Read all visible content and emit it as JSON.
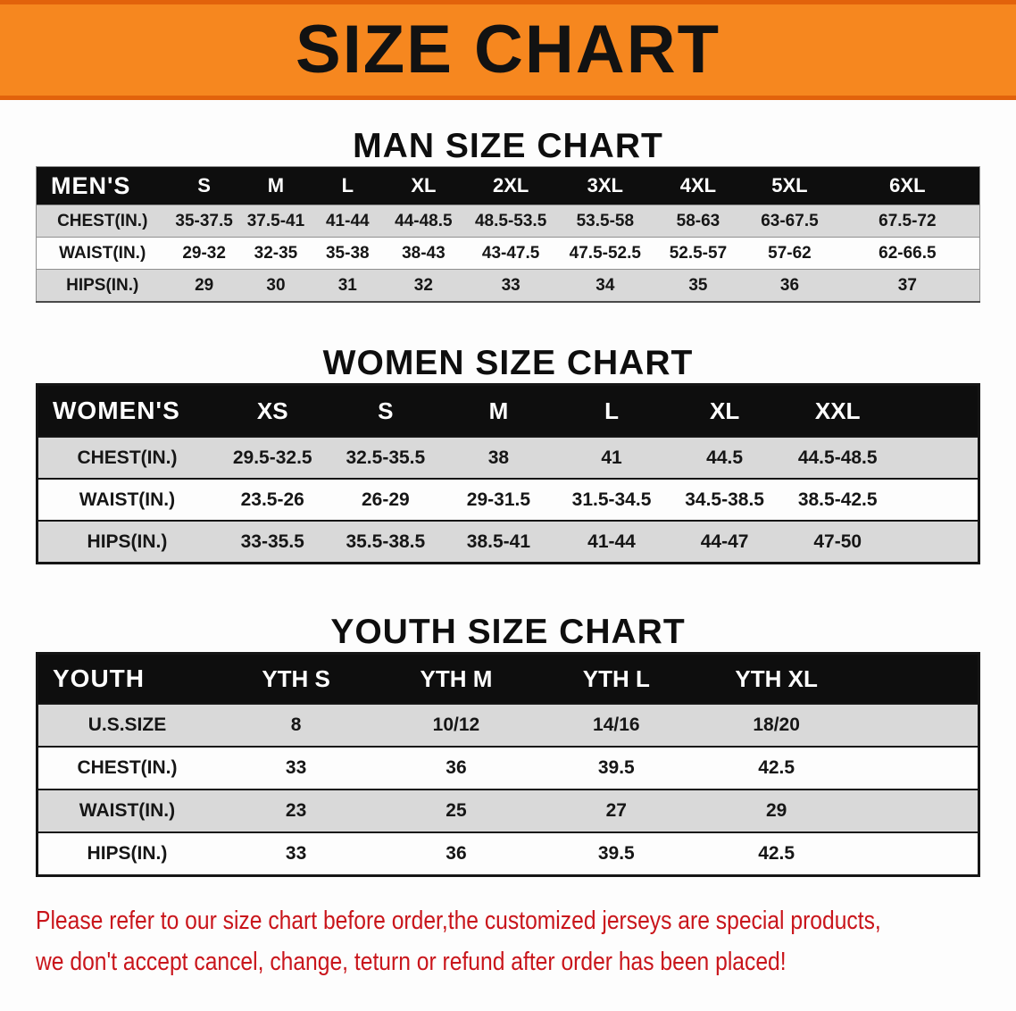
{
  "banner": {
    "title": "SIZE CHART"
  },
  "colors": {
    "banner_bg": "#f6871f",
    "table_header_bg": "#0e0e0e",
    "row_stripe": "#d9d9d9",
    "disclaimer_text": "#c9151b"
  },
  "chart_data": [
    {
      "type": "table",
      "title": "MAN SIZE CHART",
      "columns": [
        "MEN'S",
        "S",
        "M",
        "L",
        "XL",
        "2XL",
        "3XL",
        "4XL",
        "5XL",
        "6XL"
      ],
      "rows": [
        [
          "CHEST(IN.)",
          "35-37.5",
          "37.5-41",
          "41-44",
          "44-48.5",
          "48.5-53.5",
          "53.5-58",
          "58-63",
          "63-67.5",
          "67.5-72"
        ],
        [
          "WAIST(IN.)",
          "29-32",
          "32-35",
          "35-38",
          "38-43",
          "43-47.5",
          "47.5-52.5",
          "52.5-57",
          "57-62",
          "62-66.5"
        ],
        [
          "HIPS(IN.)",
          "29",
          "30",
          "31",
          "32",
          "33",
          "34",
          "35",
          "36",
          "37"
        ]
      ]
    },
    {
      "type": "table",
      "title": "WOMEN SIZE CHART",
      "columns": [
        "WOMEN'S",
        "XS",
        "S",
        "M",
        "L",
        "XL",
        "XXL"
      ],
      "rows": [
        [
          "CHEST(IN.)",
          "29.5-32.5",
          "32.5-35.5",
          "38",
          "41",
          "44.5",
          "44.5-48.5"
        ],
        [
          "WAIST(IN.)",
          "23.5-26",
          "26-29",
          "29-31.5",
          "31.5-34.5",
          "34.5-38.5",
          "38.5-42.5"
        ],
        [
          "HIPS(IN.)",
          "33-35.5",
          "35.5-38.5",
          "38.5-41",
          "41-44",
          "44-47",
          "47-50"
        ]
      ]
    },
    {
      "type": "table",
      "title": "YOUTH SIZE CHART",
      "columns": [
        "YOUTH",
        "YTH S",
        "YTH M",
        "YTH L",
        "YTH XL"
      ],
      "rows": [
        [
          "U.S.SIZE",
          "8",
          "10/12",
          "14/16",
          "18/20"
        ],
        [
          "CHEST(IN.)",
          "33",
          "36",
          "39.5",
          "42.5"
        ],
        [
          "WAIST(IN.)",
          "23",
          "25",
          "27",
          "29"
        ],
        [
          "HIPS(IN.)",
          "33",
          "36",
          "39.5",
          "42.5"
        ]
      ]
    }
  ],
  "disclaimer": {
    "line1": "Please refer to our size chart before order,the customized jerseys are special products,",
    "line2": "we don't accept cancel, change, teturn or refund after order has been placed!"
  }
}
